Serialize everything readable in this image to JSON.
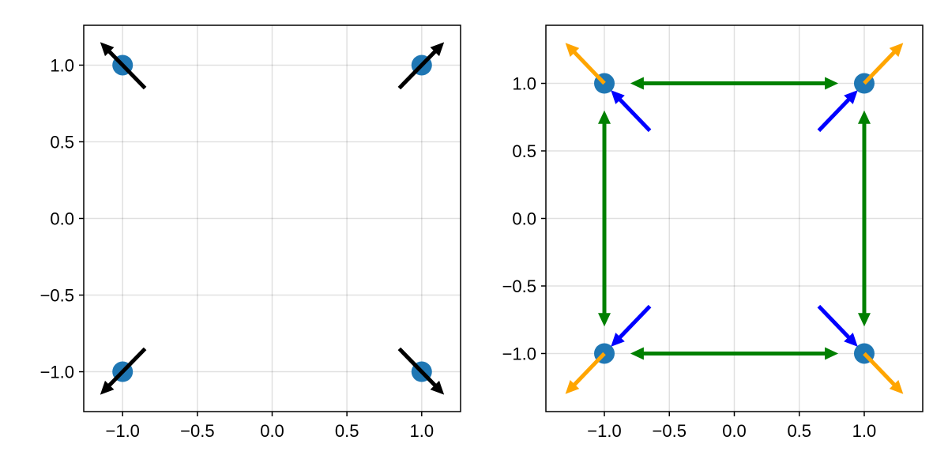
{
  "chart_data": [
    {
      "type": "scatter",
      "title": "",
      "xlabel": "",
      "ylabel": "",
      "xlim": [
        -1.26,
        1.26
      ],
      "ylim": [
        -1.26,
        1.26
      ],
      "grid": true,
      "xticks": [
        -1.0,
        -0.5,
        0.0,
        0.5,
        1.0
      ],
      "yticks": [
        -1.0,
        -0.5,
        0.0,
        0.5,
        1.0
      ],
      "xtick_labels": [
        "−1.0",
        "−0.5",
        "0.0",
        "0.5",
        "1.0"
      ],
      "ytick_labels": [
        "−1.0",
        "−0.5",
        "0.0",
        "0.5",
        "1.0"
      ],
      "points": [
        {
          "x": -1.0,
          "y": 1.0
        },
        {
          "x": 1.0,
          "y": 1.0
        },
        {
          "x": -1.0,
          "y": -1.0
        },
        {
          "x": 1.0,
          "y": -1.0
        }
      ],
      "point_color": "#1f77b4",
      "arrows": [
        {
          "x0": -0.85,
          "y0": 0.85,
          "x1": -1.15,
          "y1": 1.15,
          "color": "#000000"
        },
        {
          "x0": 0.85,
          "y0": 0.85,
          "x1": 1.15,
          "y1": 1.15,
          "color": "#000000"
        },
        {
          "x0": -0.85,
          "y0": -0.85,
          "x1": -1.15,
          "y1": -1.15,
          "color": "#000000"
        },
        {
          "x0": 0.85,
          "y0": -0.85,
          "x1": 1.15,
          "y1": -1.15,
          "color": "#000000"
        }
      ]
    },
    {
      "type": "scatter",
      "title": "",
      "xlabel": "",
      "ylabel": "",
      "xlim": [
        -1.45,
        1.45
      ],
      "ylim": [
        -1.43,
        1.43
      ],
      "grid": true,
      "xticks": [
        -1.0,
        -0.5,
        0.0,
        0.5,
        1.0
      ],
      "yticks": [
        -1.0,
        -0.5,
        0.0,
        0.5,
        1.0
      ],
      "xtick_labels": [
        "−1.0",
        "−0.5",
        "0.0",
        "0.5",
        "1.0"
      ],
      "ytick_labels": [
        "−1.0",
        "−0.5",
        "0.0",
        "0.5",
        "1.0"
      ],
      "points": [
        {
          "x": -1.0,
          "y": 1.0
        },
        {
          "x": 1.0,
          "y": 1.0
        },
        {
          "x": -1.0,
          "y": -1.0
        },
        {
          "x": 1.0,
          "y": -1.0
        }
      ],
      "point_color": "#1f77b4",
      "arrows": [
        {
          "x0": -1.0,
          "y0": 1.0,
          "x1": -1.3,
          "y1": 1.3,
          "color": "#ffa500"
        },
        {
          "x0": 1.0,
          "y0": 1.0,
          "x1": 1.3,
          "y1": 1.3,
          "color": "#ffa500"
        },
        {
          "x0": -1.0,
          "y0": -1.0,
          "x1": -1.3,
          "y1": -1.3,
          "color": "#ffa500"
        },
        {
          "x0": 1.0,
          "y0": -1.0,
          "x1": 1.3,
          "y1": -1.3,
          "color": "#ffa500"
        },
        {
          "x0": -0.65,
          "y0": 0.65,
          "x1": -0.95,
          "y1": 0.95,
          "color": "#0000ff"
        },
        {
          "x0": 0.65,
          "y0": 0.65,
          "x1": 0.95,
          "y1": 0.95,
          "color": "#0000ff"
        },
        {
          "x0": -0.65,
          "y0": -0.65,
          "x1": -0.95,
          "y1": -0.95,
          "color": "#0000ff"
        },
        {
          "x0": 0.65,
          "y0": -0.65,
          "x1": 0.95,
          "y1": -0.95,
          "color": "#0000ff"
        },
        {
          "x0": 0.0,
          "y0": 1.0,
          "x1": -0.8,
          "y1": 1.0,
          "color": "#008000"
        },
        {
          "x0": 0.0,
          "y0": 1.0,
          "x1": 0.8,
          "y1": 1.0,
          "color": "#008000"
        },
        {
          "x0": 0.0,
          "y0": -1.0,
          "x1": -0.8,
          "y1": -1.0,
          "color": "#008000"
        },
        {
          "x0": 0.0,
          "y0": -1.0,
          "x1": 0.8,
          "y1": -1.0,
          "color": "#008000"
        },
        {
          "x0": -1.0,
          "y0": 0.0,
          "x1": -1.0,
          "y1": 0.8,
          "color": "#008000"
        },
        {
          "x0": -1.0,
          "y0": 0.0,
          "x1": -1.0,
          "y1": -0.8,
          "color": "#008000"
        },
        {
          "x0": 1.0,
          "y0": 0.0,
          "x1": 1.0,
          "y1": 0.8,
          "color": "#008000"
        },
        {
          "x0": 1.0,
          "y0": 0.0,
          "x1": 1.0,
          "y1": -0.8,
          "color": "#008000"
        }
      ]
    }
  ]
}
